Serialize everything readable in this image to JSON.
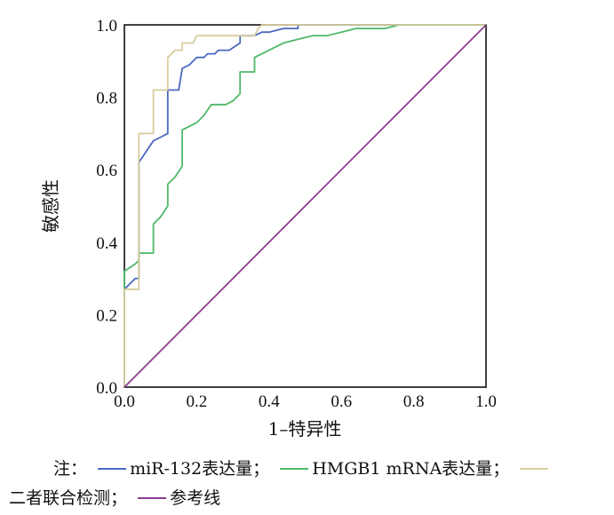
{
  "chart_data": {
    "type": "line",
    "title": "",
    "xlabel": "1–特异性",
    "ylabel": "敏感性",
    "xlim": [
      0.0,
      1.0
    ],
    "ylim": [
      0.0,
      1.0
    ],
    "xticks": [
      "0.0",
      "0.2",
      "0.4",
      "0.6",
      "0.8",
      "1.0"
    ],
    "yticks": [
      "0.0",
      "0.2",
      "0.4",
      "0.6",
      "0.8",
      "1.0"
    ],
    "grid": false,
    "legend_position": "bottom",
    "series": [
      {
        "name": "miR-132表达量",
        "color": "#4a68c0",
        "points": [
          [
            0,
            0
          ],
          [
            0,
            0.27
          ],
          [
            0.03,
            0.3
          ],
          [
            0.04,
            0.3
          ],
          [
            0.04,
            0.62
          ],
          [
            0.06,
            0.65
          ],
          [
            0.08,
            0.68
          ],
          [
            0.1,
            0.69
          ],
          [
            0.12,
            0.7
          ],
          [
            0.12,
            0.82
          ],
          [
            0.15,
            0.82
          ],
          [
            0.16,
            0.88
          ],
          [
            0.18,
            0.89
          ],
          [
            0.19,
            0.9
          ],
          [
            0.2,
            0.91
          ],
          [
            0.22,
            0.91
          ],
          [
            0.23,
            0.92
          ],
          [
            0.25,
            0.92
          ],
          [
            0.26,
            0.93
          ],
          [
            0.29,
            0.93
          ],
          [
            0.32,
            0.95
          ],
          [
            0.32,
            0.97
          ],
          [
            0.36,
            0.97
          ],
          [
            0.38,
            0.98
          ],
          [
            0.4,
            0.98
          ],
          [
            0.44,
            0.99
          ],
          [
            0.48,
            0.99
          ],
          [
            0.48,
            1.0
          ],
          [
            1.0,
            1.0
          ]
        ]
      },
      {
        "name": "HMGB1 mRNA表达量",
        "color": "#4fb868",
        "points": [
          [
            0,
            0
          ],
          [
            0,
            0.32
          ],
          [
            0.03,
            0.34
          ],
          [
            0.04,
            0.35
          ],
          [
            0.04,
            0.37
          ],
          [
            0.08,
            0.37
          ],
          [
            0.08,
            0.45
          ],
          [
            0.1,
            0.47
          ],
          [
            0.12,
            0.5
          ],
          [
            0.12,
            0.56
          ],
          [
            0.14,
            0.58
          ],
          [
            0.16,
            0.61
          ],
          [
            0.16,
            0.71
          ],
          [
            0.18,
            0.72
          ],
          [
            0.2,
            0.73
          ],
          [
            0.22,
            0.75
          ],
          [
            0.24,
            0.78
          ],
          [
            0.28,
            0.78
          ],
          [
            0.3,
            0.79
          ],
          [
            0.32,
            0.81
          ],
          [
            0.32,
            0.87
          ],
          [
            0.36,
            0.87
          ],
          [
            0.36,
            0.91
          ],
          [
            0.4,
            0.93
          ],
          [
            0.44,
            0.95
          ],
          [
            0.48,
            0.96
          ],
          [
            0.52,
            0.97
          ],
          [
            0.56,
            0.97
          ],
          [
            0.6,
            0.98
          ],
          [
            0.64,
            0.99
          ],
          [
            0.72,
            0.99
          ],
          [
            0.76,
            1.0
          ],
          [
            1.0,
            1.0
          ]
        ]
      },
      {
        "name": "二者联合检测",
        "color": "#d8cc9c",
        "points": [
          [
            0,
            0
          ],
          [
            0,
            0.27
          ],
          [
            0.04,
            0.27
          ],
          [
            0.04,
            0.7
          ],
          [
            0.08,
            0.7
          ],
          [
            0.08,
            0.82
          ],
          [
            0.12,
            0.82
          ],
          [
            0.12,
            0.91
          ],
          [
            0.14,
            0.93
          ],
          [
            0.16,
            0.93
          ],
          [
            0.16,
            0.95
          ],
          [
            0.19,
            0.95
          ],
          [
            0.2,
            0.97
          ],
          [
            0.36,
            0.97
          ],
          [
            0.37,
            0.99
          ],
          [
            0.38,
            1.0
          ],
          [
            1.0,
            1.0
          ]
        ]
      },
      {
        "name": "参考线",
        "color": "#8c3c92",
        "points": [
          [
            0,
            0
          ],
          [
            1,
            1
          ]
        ]
      }
    ]
  },
  "legend": {
    "prefix": "注：",
    "sep": "；",
    "items": [
      "miR-132表达量",
      "HMGB1 mRNA表达量",
      "二者联合检测",
      "参考线"
    ]
  }
}
